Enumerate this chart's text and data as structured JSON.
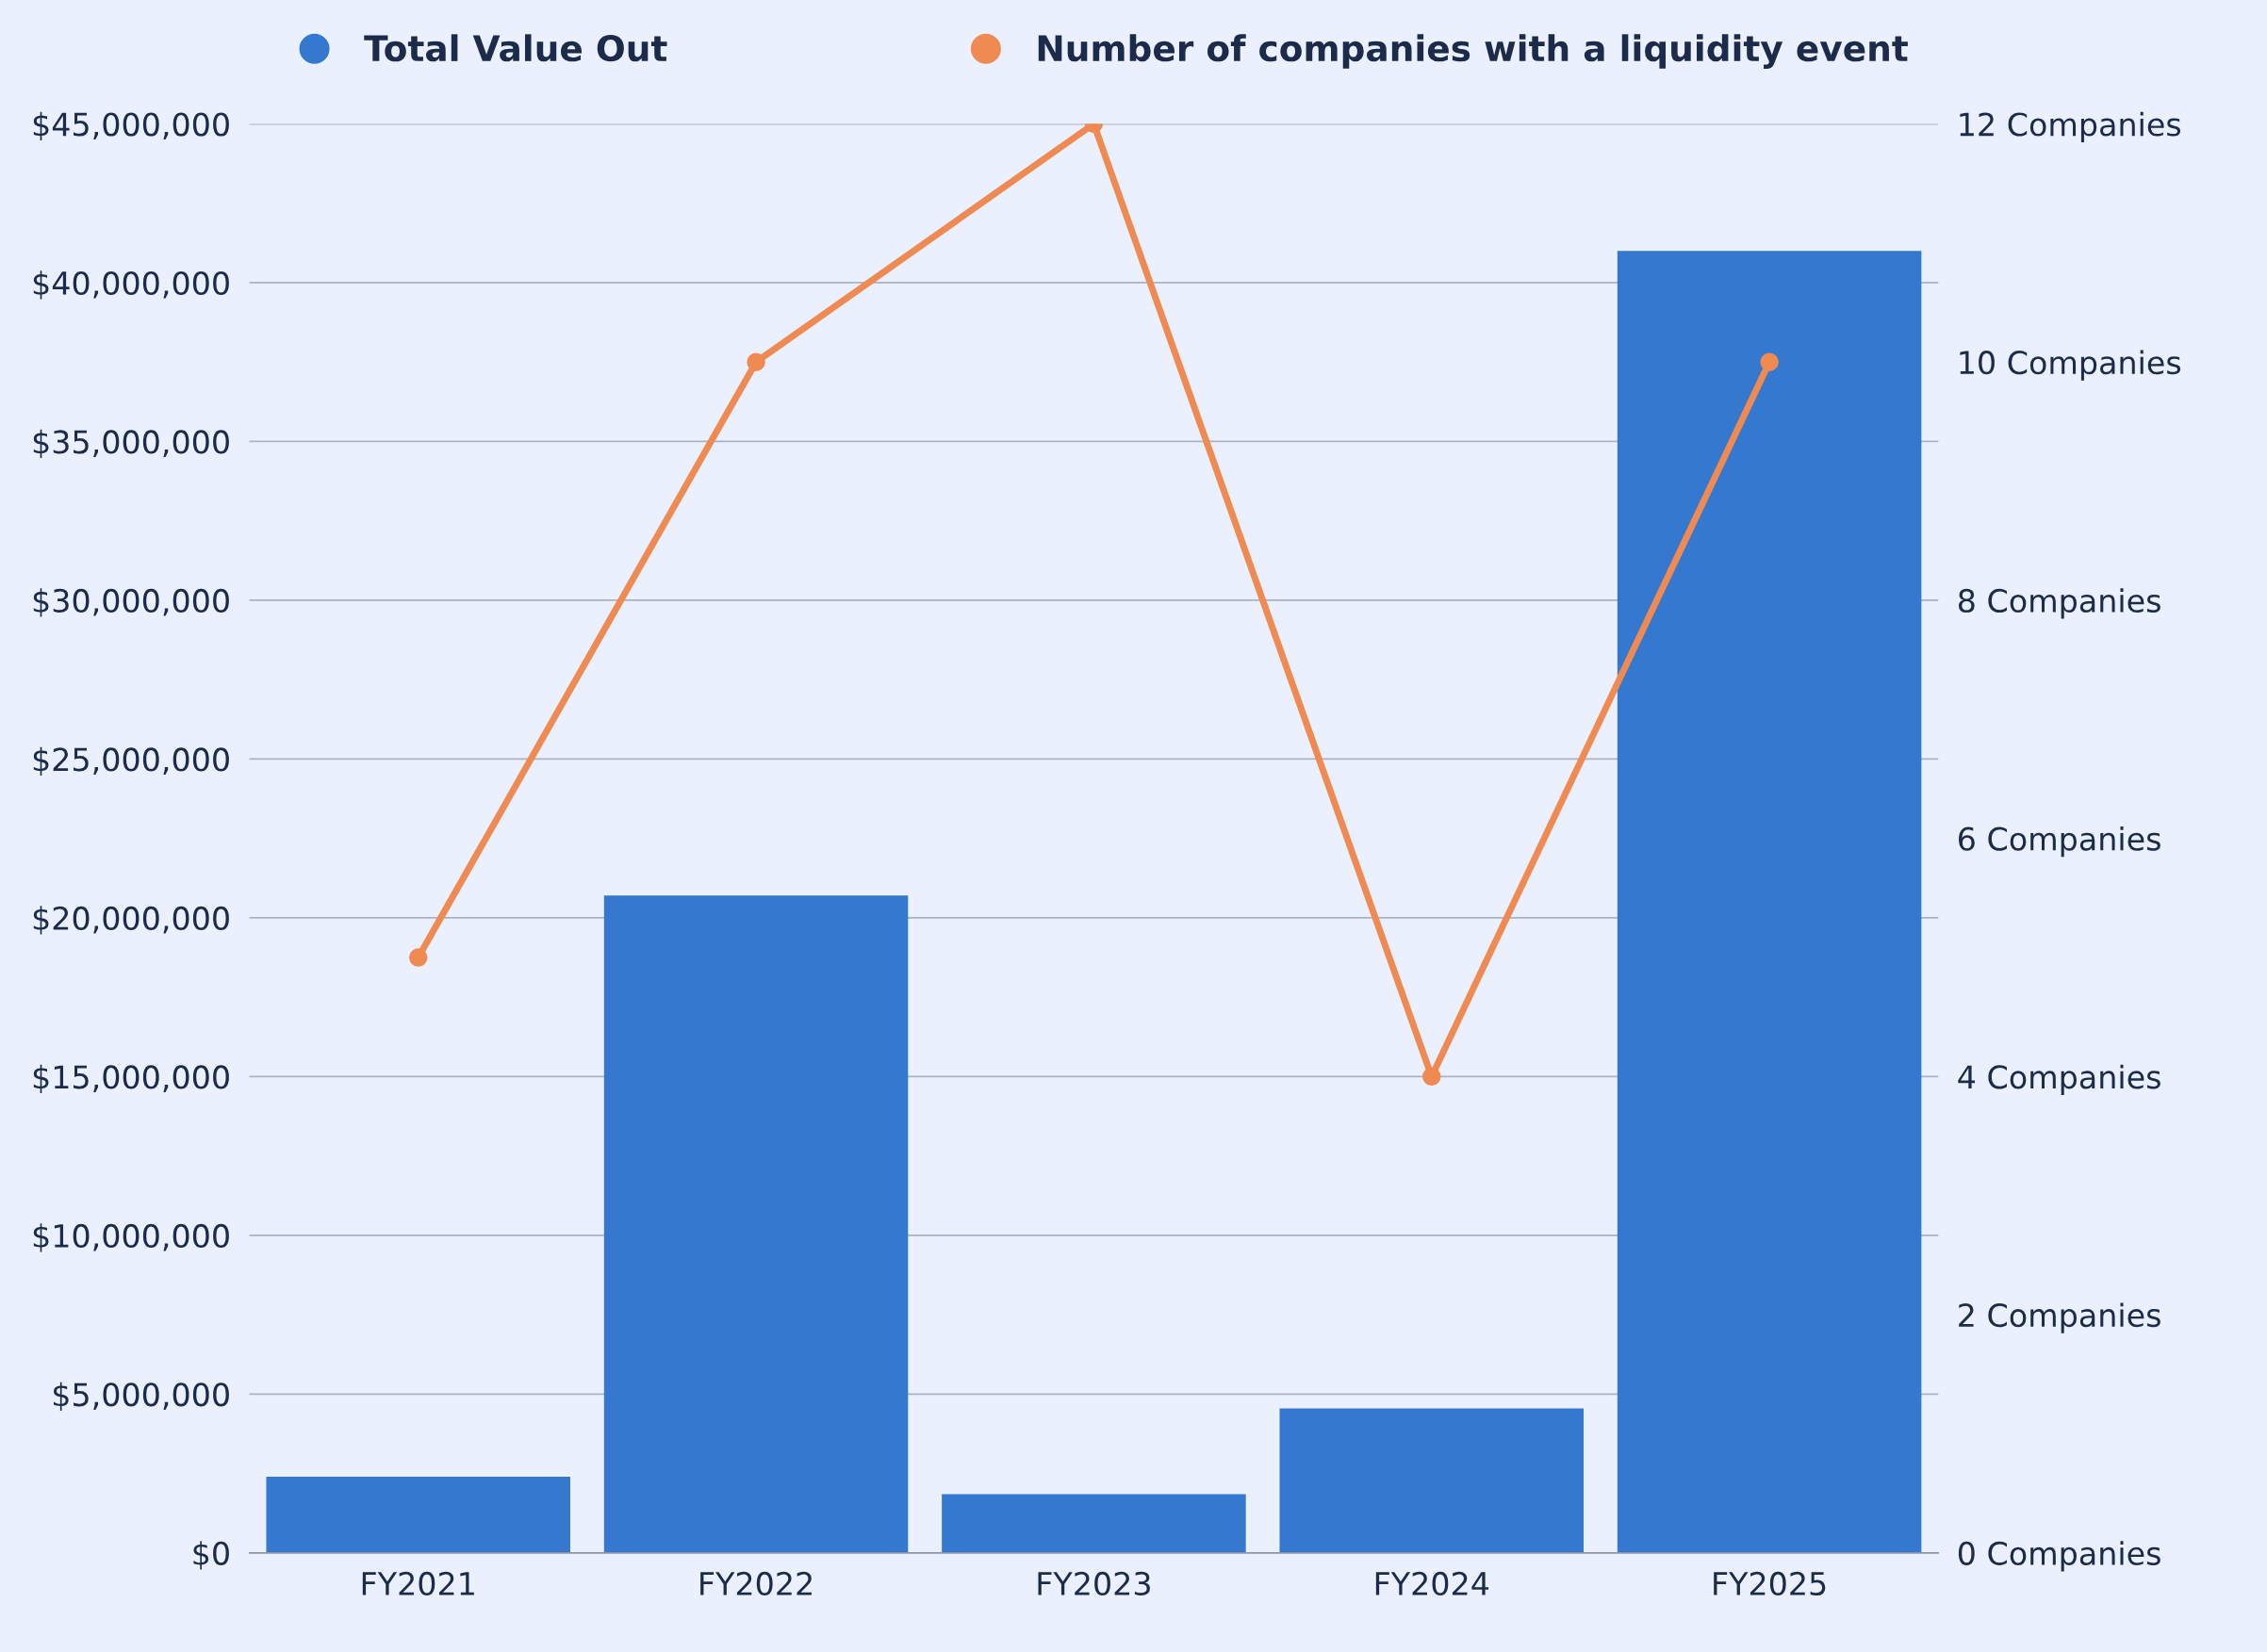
{
  "chart_data": {
    "type": "bar",
    "categories": [
      "FY2021",
      "FY2022",
      "FY2023",
      "FY2024",
      "FY2025"
    ],
    "series": [
      {
        "name": "Total Value Out",
        "color": "#3479cf",
        "values": [
          2400000,
          20700000,
          1850000,
          4550000,
          41000000
        ]
      },
      {
        "name": "Number of companies with a liquidity event",
        "type": "line",
        "axis": "y2",
        "color": "#ef8a52",
        "values": [
          5,
          10,
          12,
          4,
          10
        ]
      }
    ],
    "ylim": [
      0,
      45000000
    ],
    "yticks": [
      {
        "value": 0,
        "label": "$0"
      },
      {
        "value": 5000000,
        "label": "$5,000,000"
      },
      {
        "value": 10000000,
        "label": "$10,000,000"
      },
      {
        "value": 15000000,
        "label": "$15,000,000"
      },
      {
        "value": 20000000,
        "label": "$20,000,000"
      },
      {
        "value": 25000000,
        "label": "$25,000,000"
      },
      {
        "value": 30000000,
        "label": "$30,000,000"
      },
      {
        "value": 35000000,
        "label": "$35,000,000"
      },
      {
        "value": 40000000,
        "label": "$40,000,000"
      },
      {
        "value": 45000000,
        "label": "$45,000,000"
      }
    ],
    "y2lim": [
      0,
      12
    ],
    "y2ticks": [
      {
        "value": 0,
        "label": "0 Companies"
      },
      {
        "value": 2,
        "label": "2 Companies"
      },
      {
        "value": 4,
        "label": "4 Companies"
      },
      {
        "value": 6,
        "label": "6 Companies"
      },
      {
        "value": 8,
        "label": "8 Companies"
      },
      {
        "value": 10,
        "label": "10 Companies"
      },
      {
        "value": 12,
        "label": "12 Companies"
      }
    ],
    "grid": "y",
    "legend": "top",
    "marker": "circle",
    "line_style": "solid"
  }
}
